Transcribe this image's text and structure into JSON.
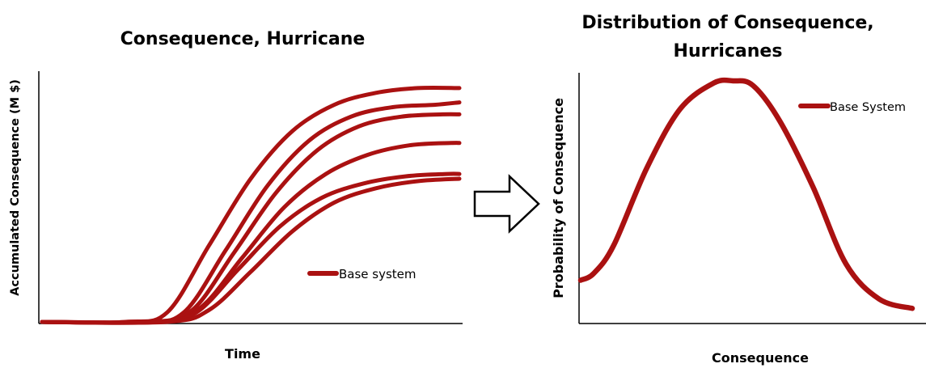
{
  "chart_data": [
    {
      "type": "line",
      "title": "Consequence, Hurricane",
      "xlabel": "Time",
      "ylabel": "Accumulated Consequence (M $)",
      "legend": {
        "label": "Base system",
        "placement": "lower-right"
      },
      "color": "#aa1111",
      "grid": false,
      "xlim": [
        0,
        100
      ],
      "ylim": [
        0,
        100
      ],
      "series": [
        {
          "x": [
            0,
            20,
            30,
            40,
            50,
            60,
            70,
            80,
            90,
            100
          ],
          "values": [
            0,
            0,
            4,
            32,
            60,
            80,
            91,
            96,
            98,
            98
          ]
        },
        {
          "x": [
            0,
            24,
            34,
            44,
            54,
            64,
            74,
            84,
            94,
            100
          ],
          "values": [
            0,
            0,
            4,
            30,
            57,
            76,
            86,
            90,
            91,
            92
          ]
        },
        {
          "x": [
            0,
            26,
            36,
            46,
            56,
            66,
            76,
            86,
            96,
            100
          ],
          "values": [
            0,
            0,
            5,
            29,
            54,
            72,
            82,
            86,
            87,
            87
          ]
        },
        {
          "x": [
            0,
            28,
            38,
            48,
            58,
            68,
            78,
            88,
            98,
            100
          ],
          "values": [
            0,
            0,
            6,
            27,
            48,
            62,
            70,
            74,
            75,
            75
          ]
        },
        {
          "x": [
            0,
            27,
            37,
            47,
            57,
            67,
            77,
            87,
            97,
            100
          ],
          "values": [
            0,
            0,
            4,
            22,
            40,
            52,
            58,
            61,
            62,
            62
          ]
        },
        {
          "x": [
            0,
            30,
            40,
            50,
            60,
            70,
            80,
            90,
            100
          ],
          "values": [
            0,
            0,
            5,
            21,
            38,
            50,
            56,
            59,
            60
          ]
        }
      ]
    },
    {
      "type": "line",
      "title": "Distribution of Consequence, Hurricanes",
      "xlabel": "Consequence",
      "ylabel": "Probability of Consequence",
      "legend": {
        "label": "Base System",
        "placement": "top-right"
      },
      "color": "#aa1111",
      "grid": false,
      "xlim": [
        0,
        100
      ],
      "ylim": [
        0,
        100
      ],
      "series": [
        {
          "x": [
            0,
            4,
            10,
            20,
            30,
            40,
            46,
            52,
            60,
            70,
            80,
            90,
            100
          ],
          "values": [
            15,
            18,
            30,
            63,
            88,
            99,
            100,
            98,
            83,
            55,
            22,
            7,
            3
          ]
        }
      ]
    }
  ]
}
